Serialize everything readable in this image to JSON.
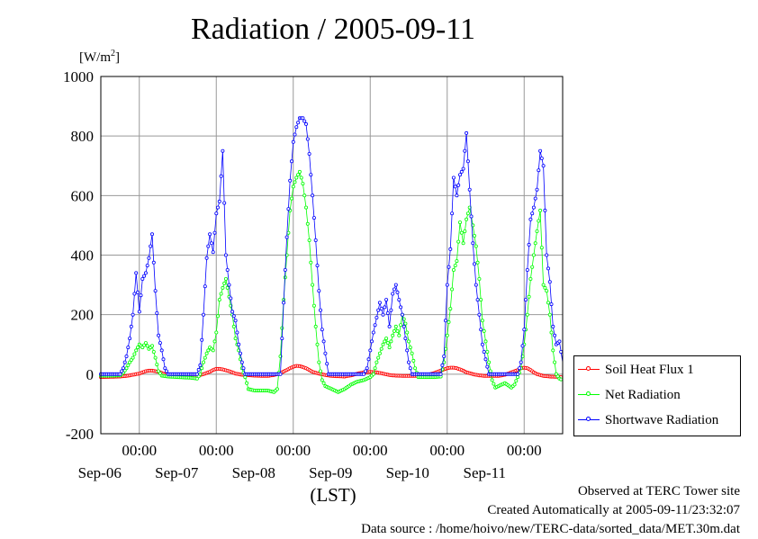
{
  "chart_data": {
    "type": "line",
    "title": "Radiation / 2005-09-11",
    "ylabel_unit": "[W/m",
    "ylabel_unit_sup": "2",
    "ylabel_unit_close": "]",
    "xlabel": "(LST)",
    "ylim": [
      -200,
      1000
    ],
    "yticks": [
      -200,
      0,
      200,
      400,
      600,
      800,
      1000
    ],
    "x_range_hours": [
      0,
      144
    ],
    "x_hour_ticks": [
      {
        "hour": 24,
        "time": "00:00",
        "date": "Sep-06"
      },
      {
        "hour": 48,
        "time": "00:00",
        "date": "Sep-07"
      },
      {
        "hour": 72,
        "time": "00:00",
        "date": "Sep-08"
      },
      {
        "hour": 96,
        "time": "00:00",
        "date": "Sep-09"
      },
      {
        "hour": 120,
        "time": "00:00",
        "date": "Sep-10"
      },
      {
        "hour": 144,
        "time": "00:00",
        "date": "Sep-11"
      }
    ],
    "grid": true,
    "legend_position": "bottom-right",
    "series": [
      {
        "name": "Soil Heat Flux 1",
        "color": "#ff0000",
        "points": [
          [
            0,
            -10
          ],
          [
            3,
            -9
          ],
          [
            6,
            -8
          ],
          [
            8,
            -6
          ],
          [
            10,
            -2
          ],
          [
            12,
            2
          ],
          [
            13,
            6
          ],
          [
            14,
            10
          ],
          [
            15,
            12
          ],
          [
            16,
            12
          ],
          [
            17,
            10
          ],
          [
            18,
            8
          ],
          [
            19,
            4
          ],
          [
            20,
            0
          ],
          [
            21,
            -3
          ],
          [
            24,
            -6
          ],
          [
            28,
            -8
          ],
          [
            30,
            -6
          ],
          [
            32,
            0
          ],
          [
            34,
            8
          ],
          [
            35,
            14
          ],
          [
            36,
            18
          ],
          [
            37,
            18
          ],
          [
            38,
            16
          ],
          [
            39,
            13
          ],
          [
            40,
            10
          ],
          [
            41,
            6
          ],
          [
            42,
            2
          ],
          [
            44,
            -2
          ],
          [
            48,
            -5
          ],
          [
            52,
            -6
          ],
          [
            54,
            -3
          ],
          [
            56,
            4
          ],
          [
            58,
            14
          ],
          [
            59,
            20
          ],
          [
            60,
            25
          ],
          [
            61,
            28
          ],
          [
            62,
            27
          ],
          [
            63,
            24
          ],
          [
            64,
            20
          ],
          [
            65,
            14
          ],
          [
            66,
            8
          ],
          [
            68,
            2
          ],
          [
            70,
            -3
          ],
          [
            72,
            -6
          ],
          [
            76,
            -8
          ],
          [
            78,
            -4
          ],
          [
            80,
            2
          ],
          [
            82,
            6
          ],
          [
            84,
            8
          ],
          [
            86,
            6
          ],
          [
            88,
            2
          ],
          [
            90,
            -3
          ],
          [
            92,
            -5
          ],
          [
            96,
            -6
          ],
          [
            100,
            -6
          ],
          [
            102,
            -2
          ],
          [
            104,
            4
          ],
          [
            106,
            12
          ],
          [
            107,
            16
          ],
          [
            108,
            20
          ],
          [
            109,
            22
          ],
          [
            110,
            22
          ],
          [
            111,
            20
          ],
          [
            112,
            16
          ],
          [
            113,
            12
          ],
          [
            114,
            6
          ],
          [
            116,
            0
          ],
          [
            118,
            -4
          ],
          [
            120,
            -6
          ],
          [
            124,
            -6
          ],
          [
            126,
            -2
          ],
          [
            128,
            6
          ],
          [
            130,
            14
          ],
          [
            131,
            20
          ],
          [
            132,
            22
          ],
          [
            133,
            20
          ],
          [
            134,
            14
          ],
          [
            135,
            6
          ],
          [
            136,
            0
          ],
          [
            138,
            -6
          ],
          [
            140,
            -8
          ],
          [
            144,
            -10
          ]
        ]
      },
      {
        "name": "Net Radiation",
        "color": "#00ff00",
        "points": [
          [
            0,
            -5
          ],
          [
            4,
            -5
          ],
          [
            6,
            -4
          ],
          [
            7,
            5
          ],
          [
            8,
            20
          ],
          [
            9,
            40
          ],
          [
            10,
            55
          ],
          [
            11,
            80
          ],
          [
            12,
            100
          ],
          [
            13,
            90
          ],
          [
            14,
            105
          ],
          [
            15,
            85
          ],
          [
            16,
            95
          ],
          [
            17,
            55
          ],
          [
            18,
            10
          ],
          [
            19,
            -5
          ],
          [
            21,
            -8
          ],
          [
            24,
            -10
          ],
          [
            28,
            -12
          ],
          [
            30,
            -15
          ],
          [
            31,
            0
          ],
          [
            32,
            40
          ],
          [
            33,
            70
          ],
          [
            34,
            90
          ],
          [
            35,
            80
          ],
          [
            36,
            140
          ],
          [
            37,
            250
          ],
          [
            38,
            290
          ],
          [
            39,
            320
          ],
          [
            40,
            260
          ],
          [
            41,
            200
          ],
          [
            42,
            120
          ],
          [
            43,
            80
          ],
          [
            44,
            20
          ],
          [
            45,
            -10
          ],
          [
            46,
            -50
          ],
          [
            48,
            -55
          ],
          [
            52,
            -55
          ],
          [
            54,
            -60
          ],
          [
            55,
            -50
          ],
          [
            56,
            60
          ],
          [
            57,
            250
          ],
          [
            58,
            400
          ],
          [
            59,
            550
          ],
          [
            60,
            630
          ],
          [
            61,
            660
          ],
          [
            62,
            680
          ],
          [
            63,
            640
          ],
          [
            64,
            560
          ],
          [
            65,
            450
          ],
          [
            66,
            300
          ],
          [
            67,
            160
          ],
          [
            68,
            40
          ],
          [
            69,
            -20
          ],
          [
            70,
            -40
          ],
          [
            72,
            -50
          ],
          [
            74,
            -60
          ],
          [
            76,
            -50
          ],
          [
            78,
            -35
          ],
          [
            80,
            -25
          ],
          [
            82,
            -20
          ],
          [
            84,
            -10
          ],
          [
            85,
            0
          ],
          [
            86,
            40
          ],
          [
            87,
            70
          ],
          [
            88,
            100
          ],
          [
            89,
            120
          ],
          [
            90,
            90
          ],
          [
            91,
            130
          ],
          [
            92,
            160
          ],
          [
            93,
            130
          ],
          [
            94,
            200
          ],
          [
            95,
            170
          ],
          [
            96,
            110
          ],
          [
            97,
            70
          ],
          [
            98,
            20
          ],
          [
            99,
            -10
          ],
          [
            100,
            -10
          ],
          [
            104,
            -10
          ],
          [
            106,
            -8
          ],
          [
            107,
            40
          ],
          [
            108,
            130
          ],
          [
            109,
            220
          ],
          [
            110,
            350
          ],
          [
            111,
            380
          ],
          [
            112,
            510
          ],
          [
            113,
            440
          ],
          [
            114,
            520
          ],
          [
            115,
            560
          ],
          [
            116,
            500
          ],
          [
            117,
            430
          ],
          [
            118,
            320
          ],
          [
            119,
            180
          ],
          [
            120,
            110
          ],
          [
            121,
            40
          ],
          [
            122,
            -20
          ],
          [
            123,
            -45
          ],
          [
            124,
            -40
          ],
          [
            126,
            -30
          ],
          [
            128,
            -45
          ],
          [
            129,
            -35
          ],
          [
            130,
            -10
          ],
          [
            131,
            20
          ],
          [
            132,
            100
          ],
          [
            133,
            200
          ],
          [
            134,
            320
          ],
          [
            135,
            400
          ],
          [
            136,
            480
          ],
          [
            137,
            550
          ],
          [
            138,
            300
          ],
          [
            139,
            280
          ],
          [
            140,
            200
          ],
          [
            141,
            80
          ],
          [
            142,
            0
          ],
          [
            143,
            -15
          ],
          [
            144,
            -20
          ]
        ]
      },
      {
        "name": "Shortwave Radiation",
        "color": "#0000ff",
        "points": [
          [
            0,
            0
          ],
          [
            6,
            0
          ],
          [
            7,
            20
          ],
          [
            8,
            60
          ],
          [
            9,
            120
          ],
          [
            10,
            200
          ],
          [
            11,
            340
          ],
          [
            12,
            210
          ],
          [
            13,
            320
          ],
          [
            14,
            340
          ],
          [
            15,
            390
          ],
          [
            16,
            470
          ],
          [
            17,
            280
          ],
          [
            18,
            130
          ],
          [
            19,
            80
          ],
          [
            20,
            20
          ],
          [
            21,
            0
          ],
          [
            30,
            0
          ],
          [
            31,
            30
          ],
          [
            32,
            200
          ],
          [
            33,
            390
          ],
          [
            34,
            470
          ],
          [
            35,
            410
          ],
          [
            36,
            540
          ],
          [
            37,
            580
          ],
          [
            38,
            750
          ],
          [
            39,
            400
          ],
          [
            40,
            300
          ],
          [
            41,
            210
          ],
          [
            42,
            180
          ],
          [
            43,
            100
          ],
          [
            44,
            40
          ],
          [
            45,
            0
          ],
          [
            56,
            0
          ],
          [
            57,
            240
          ],
          [
            58,
            460
          ],
          [
            59,
            650
          ],
          [
            60,
            780
          ],
          [
            61,
            830
          ],
          [
            62,
            860
          ],
          [
            63,
            860
          ],
          [
            64,
            840
          ],
          [
            65,
            740
          ],
          [
            66,
            600
          ],
          [
            67,
            450
          ],
          [
            68,
            280
          ],
          [
            69,
            150
          ],
          [
            70,
            70
          ],
          [
            71,
            0
          ],
          [
            82,
            0
          ],
          [
            83,
            20
          ],
          [
            84,
            80
          ],
          [
            85,
            140
          ],
          [
            86,
            190
          ],
          [
            87,
            240
          ],
          [
            88,
            200
          ],
          [
            89,
            250
          ],
          [
            90,
            160
          ],
          [
            91,
            270
          ],
          [
            92,
            300
          ],
          [
            93,
            250
          ],
          [
            94,
            200
          ],
          [
            95,
            120
          ],
          [
            96,
            40
          ],
          [
            97,
            0
          ],
          [
            106,
            0
          ],
          [
            107,
            60
          ],
          [
            108,
            300
          ],
          [
            109,
            420
          ],
          [
            110,
            660
          ],
          [
            111,
            600
          ],
          [
            112,
            670
          ],
          [
            113,
            690
          ],
          [
            114,
            810
          ],
          [
            115,
            620
          ],
          [
            116,
            440
          ],
          [
            117,
            300
          ],
          [
            118,
            200
          ],
          [
            119,
            100
          ],
          [
            120,
            50
          ],
          [
            121,
            0
          ],
          [
            130,
            0
          ],
          [
            131,
            40
          ],
          [
            132,
            150
          ],
          [
            133,
            350
          ],
          [
            134,
            520
          ],
          [
            135,
            560
          ],
          [
            136,
            620
          ],
          [
            137,
            750
          ],
          [
            138,
            700
          ],
          [
            139,
            400
          ],
          [
            140,
            310
          ],
          [
            141,
            160
          ],
          [
            142,
            100
          ],
          [
            143,
            110
          ],
          [
            144,
            40
          ]
        ]
      }
    ],
    "legend": [
      "Soil Heat Flux 1",
      "Net Radiation",
      "Shortwave Radiation"
    ]
  },
  "footer": {
    "line1": "Observed at TERC Tower site",
    "line2": "Created Automatically at 2005-09-11/23:32:07",
    "line3": "Data source : /home/hoivo/new/TERC-data/sorted_data/MET.30m.dat"
  }
}
